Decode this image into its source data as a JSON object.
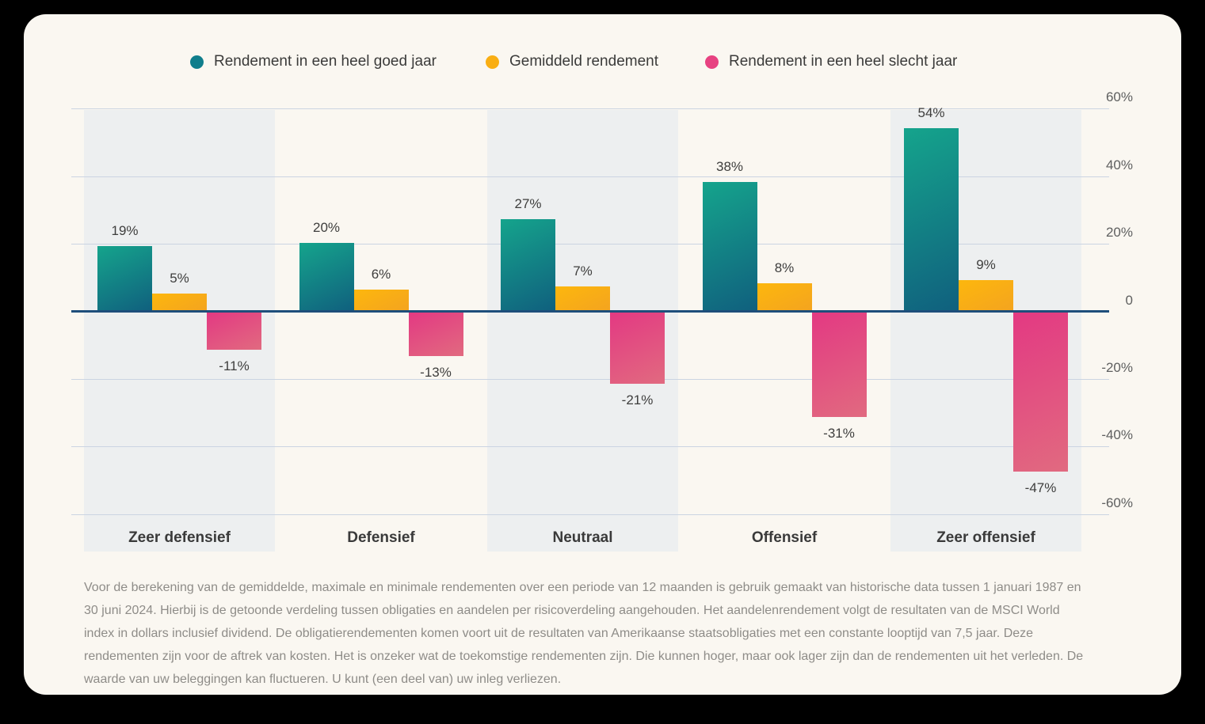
{
  "page": {
    "outer_background": "#000000",
    "card_background": "#FAF7F1"
  },
  "legend": {
    "items": [
      {
        "label": "Rendement in een heel goed jaar",
        "color": "#107E8C"
      },
      {
        "label": "Gemiddeld rendement",
        "color": "#F9AE13"
      },
      {
        "label": "Rendement in een heel slecht jaar",
        "color": "#E74281"
      }
    ]
  },
  "chart_data": {
    "type": "bar",
    "categories": [
      "Zeer defensief",
      "Defensief",
      "Neutraal",
      "Offensief",
      "Zeer offensief"
    ],
    "series": [
      {
        "key": "good-year",
        "name": "Rendement in een heel goed jaar",
        "values": [
          19,
          20,
          27,
          38,
          54
        ],
        "labels": [
          "19%",
          "20%",
          "27%",
          "38%",
          "54%"
        ],
        "color_top": "#15A48C",
        "color_bottom": "#10607E"
      },
      {
        "key": "average",
        "name": "Gemiddeld rendement",
        "values": [
          5,
          6,
          7,
          8,
          9
        ],
        "labels": [
          "5%",
          "6%",
          "7%",
          "8%",
          "9%"
        ],
        "color_top": "#FDB70D",
        "color_bottom": "#F4A41F"
      },
      {
        "key": "bad-year",
        "name": "Rendement in een heel slecht jaar",
        "values": [
          -11,
          -13,
          -21,
          -31,
          -47
        ],
        "labels": [
          "-11%",
          "-13%",
          "-21%",
          "-31%",
          "-47%"
        ],
        "color_top": "#E33982",
        "color_bottom": "#E16A80"
      }
    ],
    "y_axis": {
      "position": "right",
      "ticks": [
        60,
        40,
        20,
        0,
        -20,
        -40,
        -60
      ],
      "tick_labels": [
        "60%",
        "40%",
        "20%",
        "0",
        "-20%",
        "-40%",
        "-60%"
      ],
      "ylim": [
        -60,
        60
      ],
      "grid": true
    },
    "legend_position": "top",
    "style": {
      "band_color": "#EDEFF0",
      "gridline_color": "#CBD4E2",
      "zero_line_color": "#1E4E7B",
      "banded_groups": [
        0,
        2,
        4
      ]
    }
  },
  "footer": {
    "text": "Voor de berekening van de gemiddelde, maximale en minimale rendementen over een periode van 12 maanden is gebruik gemaakt van historische data tussen 1 januari 1987 en 30 juni 2024. Hierbij is de getoonde verdeling tussen obligaties en aandelen per risicoverdeling aangehouden. Het aandelenrendement volgt de resultaten van de MSCI World index in dollars inclusief dividend. De obligatierendementen komen voort uit de resultaten van Amerikaanse staatsobligaties met een constante looptijd van 7,5 jaar. Deze rendementen zijn voor de aftrek van kosten. Het is onzeker wat de toekomstige rendementen zijn. Die kunnen hoger, maar ook lager zijn dan de rendementen uit het verleden. De waarde van uw beleggingen kan fluctueren. U kunt (een deel van) uw inleg verliezen."
  }
}
